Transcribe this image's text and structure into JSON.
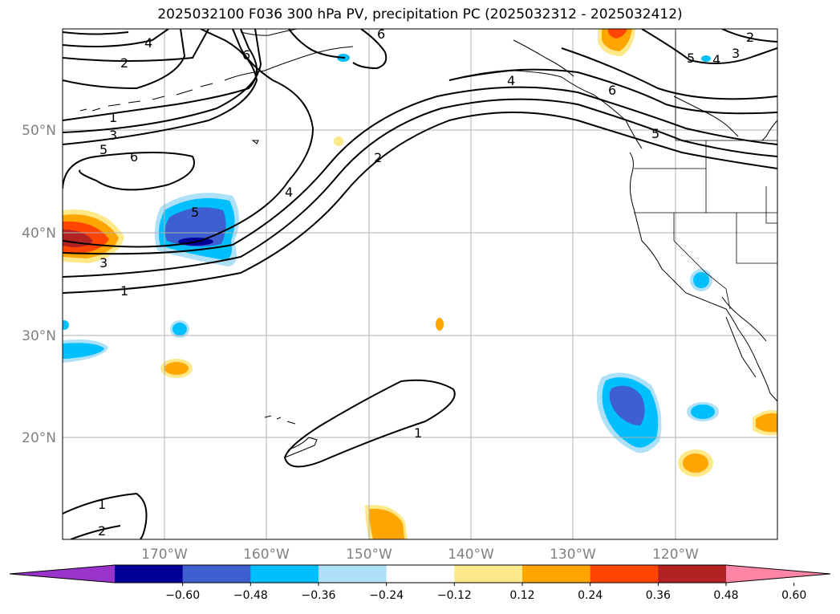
{
  "title": "2025032100 F036 300 hPa PV, precipitation PC (2025032312 - 2025032412)",
  "lon_labels": [
    "170°W",
    "160°W",
    "150°W",
    "140°W",
    "130°W",
    "120°W"
  ],
  "lat_labels": [
    "50°N",
    "40°N",
    "30°N",
    "20°N"
  ],
  "colorbar": {
    "colors": [
      "#9933cc",
      "#000099",
      "#3d5fcf",
      "#00bfff",
      "#aee0f8",
      "#ffffff",
      "#fde98a",
      "#ffa500",
      "#ff4500",
      "#b22222",
      "#ff85a6"
    ],
    "tick_labels": [
      "−0.60",
      "−0.48",
      "−0.36",
      "−0.24",
      "−0.12",
      "0.12",
      "0.24",
      "0.36",
      "0.48",
      "0.60"
    ]
  },
  "contour_labels": [
    "4",
    "2",
    "1",
    "3",
    "5",
    "6",
    "3",
    "5",
    "6",
    "4",
    "2",
    "1",
    "4",
    "6",
    "5",
    "5",
    "4",
    "3",
    "2",
    "1",
    "1",
    "2",
    "6"
  ]
}
